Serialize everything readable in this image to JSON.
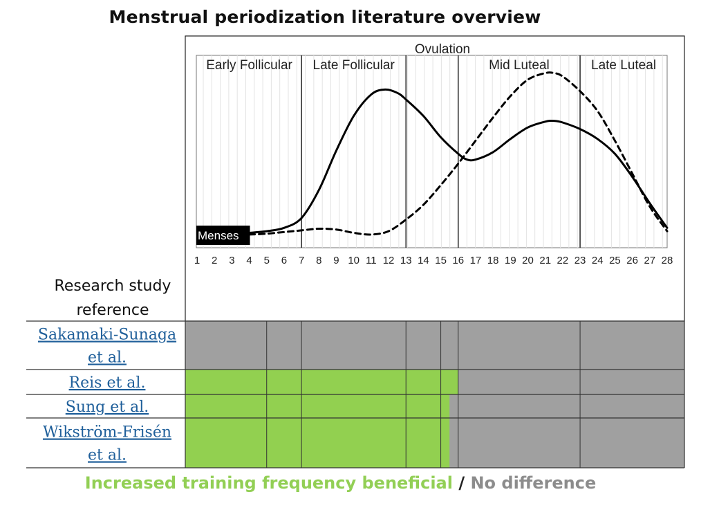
{
  "title": "Menstrual periodization literature overview",
  "colors": {
    "beneficial": "#92d050",
    "no_difference": "#a0a0a0",
    "link": "#1f5f9a",
    "menses_bg": "#000000"
  },
  "chart_data": {
    "type": "line",
    "x": [
      1,
      2,
      3,
      4,
      5,
      6,
      7,
      8,
      9,
      10,
      11,
      12,
      13,
      14,
      15,
      16,
      17,
      18,
      19,
      20,
      21,
      22,
      23,
      24,
      25,
      26,
      27,
      28
    ],
    "xlim": [
      1,
      28
    ],
    "ylim": [
      0,
      100
    ],
    "annotation_top": "Ovulation",
    "phases": [
      {
        "label": "Early Follicular",
        "start": 1,
        "end": 7
      },
      {
        "label": "Late Follicular",
        "start": 7,
        "end": 13
      },
      {
        "label": "Mid Luteal",
        "start": 16,
        "end": 23
      },
      {
        "label": "Late Luteal",
        "start": 23,
        "end": 28
      }
    ],
    "phase_boundaries": [
      7,
      13,
      16,
      23
    ],
    "menses_label": "Menses",
    "menses_range": [
      1,
      4
    ],
    "series": [
      {
        "name": "solid",
        "style": "solid",
        "points": [
          [
            4,
            4
          ],
          [
            5,
            5
          ],
          [
            6,
            7
          ],
          [
            7,
            13
          ],
          [
            8,
            30
          ],
          [
            9,
            54
          ],
          [
            10,
            75
          ],
          [
            11,
            88
          ],
          [
            11.8,
            91
          ],
          [
            12.5,
            89
          ],
          [
            13,
            85
          ],
          [
            14,
            75
          ],
          [
            15,
            62
          ],
          [
            16,
            52
          ],
          [
            16.5,
            48.5
          ],
          [
            17,
            48.5
          ],
          [
            18,
            53
          ],
          [
            19,
            61
          ],
          [
            20,
            68
          ],
          [
            21,
            71.5
          ],
          [
            21.5,
            72
          ],
          [
            22,
            71
          ],
          [
            23,
            67
          ],
          [
            24,
            61
          ],
          [
            25,
            52
          ],
          [
            26,
            38
          ],
          [
            27,
            22
          ],
          [
            28,
            7
          ]
        ]
      },
      {
        "name": "dashed",
        "style": "dashed",
        "points": [
          [
            4,
            3
          ],
          [
            5,
            3.5
          ],
          [
            6,
            4.5
          ],
          [
            7,
            5.5
          ],
          [
            8,
            6.5
          ],
          [
            9,
            6
          ],
          [
            10,
            4
          ],
          [
            11,
            3
          ],
          [
            12,
            5
          ],
          [
            13,
            12
          ],
          [
            14,
            21
          ],
          [
            15,
            33
          ],
          [
            16,
            46
          ],
          [
            17,
            60
          ],
          [
            18,
            74
          ],
          [
            19,
            87
          ],
          [
            20,
            97
          ],
          [
            21,
            101
          ],
          [
            21.5,
            101
          ],
          [
            22,
            99
          ],
          [
            23,
            90
          ],
          [
            24,
            78
          ],
          [
            25,
            60
          ],
          [
            26,
            40
          ],
          [
            27,
            20
          ],
          [
            28,
            5
          ]
        ]
      }
    ]
  },
  "table": {
    "header": [
      "Research study",
      "reference"
    ],
    "column_boundaries": [
      1,
      5,
      7,
      13,
      15,
      16,
      23,
      28
    ],
    "studies": [
      {
        "name": [
          "Sakamaki-Sunaga",
          "et al."
        ],
        "beneficial_until": 1
      },
      {
        "name": [
          "Reis et al."
        ],
        "beneficial_until": 16
      },
      {
        "name": [
          "Sung et al."
        ],
        "beneficial_until": 15.5
      },
      {
        "name": [
          "Wikström-Frisén",
          "et al."
        ],
        "beneficial_until": 15.5
      }
    ]
  },
  "legend": {
    "positive": "Increased training frequency beneficial",
    "separator": " / ",
    "negative": "No difference"
  }
}
